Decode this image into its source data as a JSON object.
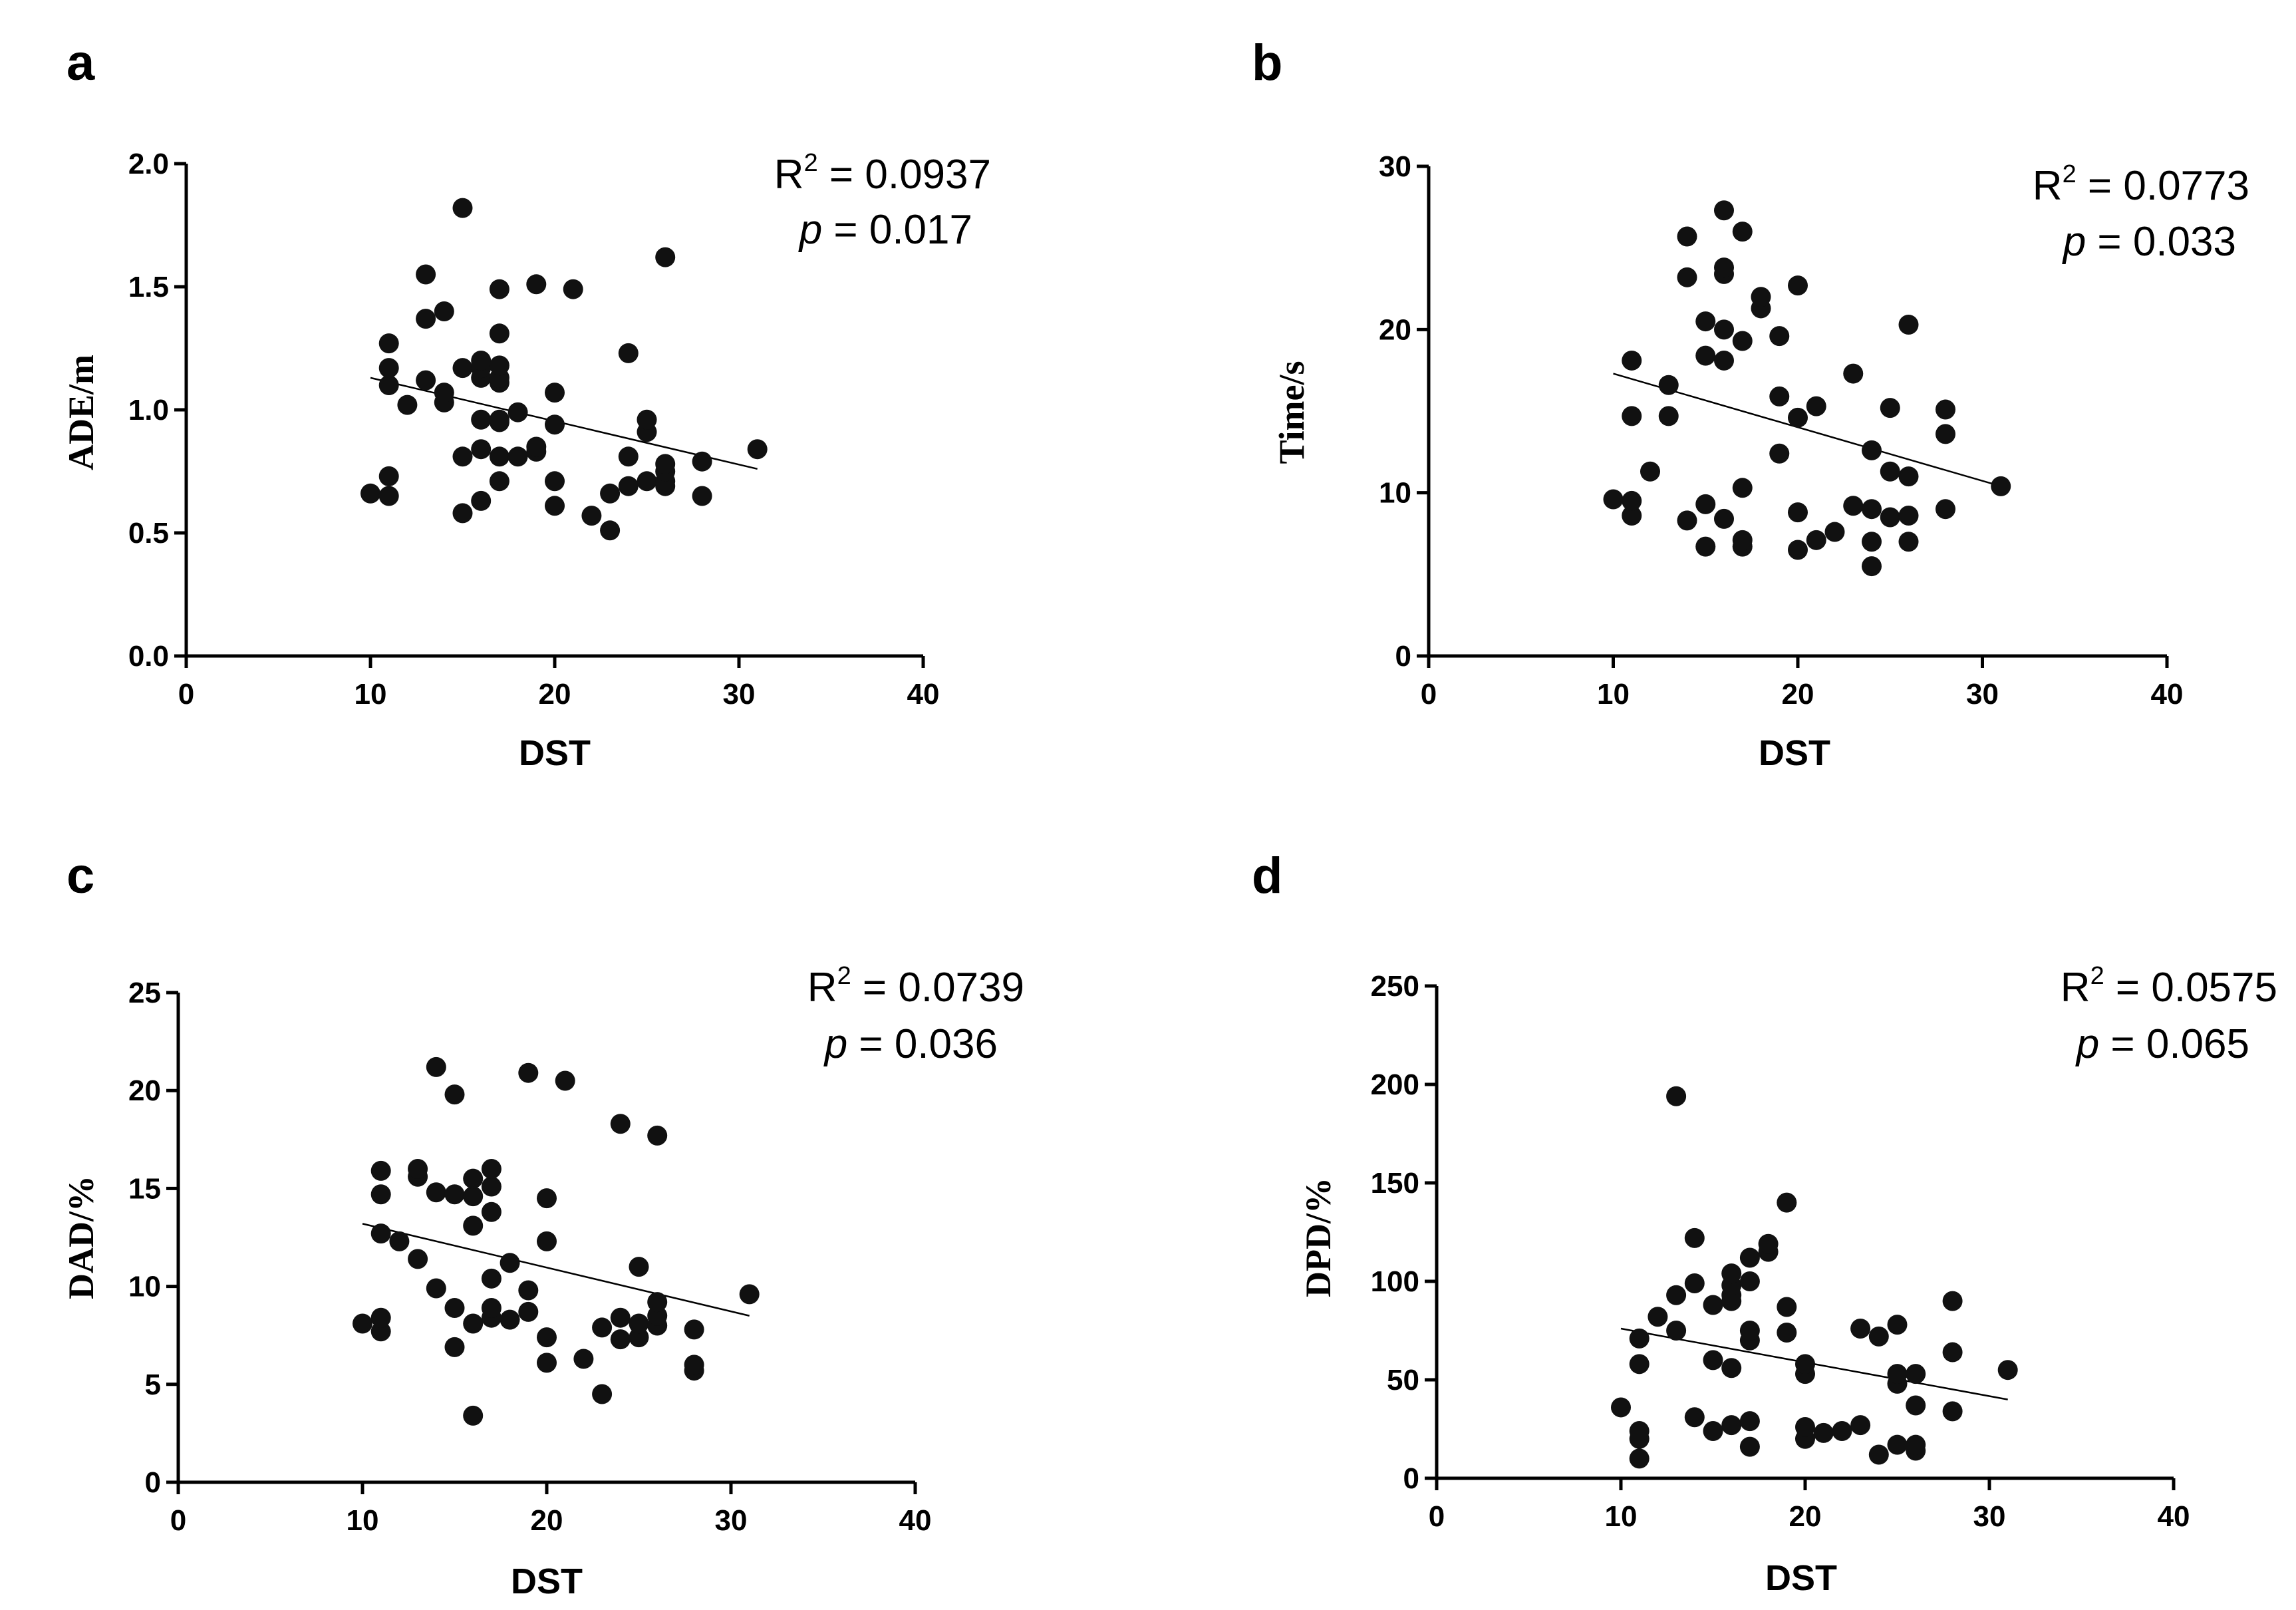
{
  "chart_data": [
    {
      "type": "scatter",
      "panel": "a",
      "title": "",
      "xlabel": "DST",
      "ylabel": "ADE/m",
      "xlim": [
        0,
        40
      ],
      "ylim": [
        0.0,
        2.0
      ],
      "xticks": [
        "0",
        "10",
        "20",
        "30",
        "40"
      ],
      "yticks": [
        "0.0",
        "0.5",
        "1.0",
        "1.5",
        "2.0"
      ],
      "xtick_values": [
        0,
        10,
        20,
        30,
        40
      ],
      "ytick_values": [
        0.0,
        0.5,
        1.0,
        1.5,
        2.0
      ],
      "stats": {
        "r2_label": "R",
        "r2_sup": "2",
        "r2_value": " = 0.0937",
        "p_label": "p",
        "p_value": " = 0.017"
      },
      "fit": {
        "x": [
          10,
          31
        ],
        "y": [
          1.13,
          0.76
        ]
      },
      "points": {
        "x": [
          10,
          11,
          11,
          11,
          11,
          11,
          12,
          13,
          13,
          13,
          14,
          14,
          14,
          15,
          15,
          15,
          15,
          16,
          16,
          16,
          16,
          16,
          16,
          17,
          17,
          17,
          17,
          17,
          17,
          17,
          17,
          17,
          18,
          18,
          19,
          19,
          19,
          20,
          20,
          20,
          20,
          21,
          22,
          23,
          23,
          24,
          24,
          24,
          25,
          25,
          25,
          26,
          26,
          26,
          26,
          26,
          28,
          28,
          31
        ],
        "y": [
          0.66,
          0.65,
          0.73,
          1.1,
          1.17,
          1.27,
          1.02,
          1.12,
          1.37,
          1.55,
          1.03,
          1.07,
          1.4,
          0.58,
          0.81,
          1.17,
          1.82,
          0.63,
          0.84,
          0.96,
          1.13,
          1.17,
          1.2,
          0.71,
          0.81,
          0.95,
          1.11,
          1.13,
          1.18,
          1.31,
          1.49,
          0.96,
          0.81,
          0.99,
          0.83,
          0.85,
          1.51,
          0.61,
          0.71,
          0.94,
          1.07,
          1.49,
          0.57,
          0.51,
          0.66,
          0.69,
          0.81,
          1.23,
          0.71,
          0.91,
          0.96,
          0.69,
          0.71,
          0.75,
          0.78,
          1.62,
          0.65,
          0.79,
          0.84
        ]
      }
    },
    {
      "type": "scatter",
      "panel": "b",
      "title": "",
      "xlabel": "DST",
      "ylabel": "Time/s",
      "xlim": [
        0,
        40
      ],
      "ylim": [
        0,
        30
      ],
      "xticks": [
        "0",
        "10",
        "20",
        "30",
        "40"
      ],
      "yticks": [
        "0",
        "10",
        "20",
        "30"
      ],
      "xtick_values": [
        0,
        10,
        20,
        30,
        40
      ],
      "ytick_values": [
        0,
        10,
        20,
        30
      ],
      "stats": {
        "r2_label": "R",
        "r2_sup": "2",
        "r2_value": " = 0.0773",
        "p_label": "p",
        "p_value": " = 0.033"
      },
      "fit": {
        "x": [
          10,
          31
        ],
        "y": [
          17.3,
          10.4
        ]
      },
      "points": {
        "x": [
          10,
          11,
          11,
          11,
          11,
          12,
          13,
          13,
          14,
          14,
          14,
          15,
          15,
          15,
          15,
          16,
          16,
          16,
          16,
          16,
          16,
          17,
          17,
          17,
          17,
          17,
          18,
          18,
          19,
          19,
          19,
          20,
          20,
          20,
          20,
          21,
          21,
          22,
          23,
          23,
          24,
          24,
          24,
          24,
          25,
          25,
          25,
          26,
          26,
          26,
          26,
          28,
          28,
          28,
          31
        ],
        "y": [
          9.6,
          8.6,
          9.5,
          14.7,
          18.1,
          11.3,
          14.7,
          16.6,
          8.3,
          23.2,
          25.7,
          6.7,
          9.3,
          18.4,
          20.5,
          8.4,
          18.1,
          20.0,
          23.4,
          23.8,
          27.3,
          6.7,
          7.1,
          10.3,
          19.3,
          26.0,
          21.3,
          22.0,
          12.4,
          15.9,
          19.6,
          6.5,
          8.8,
          14.6,
          22.7,
          7.1,
          15.3,
          7.6,
          9.2,
          17.3,
          5.5,
          7.0,
          12.6,
          9.0,
          8.5,
          11.3,
          15.2,
          7.0,
          8.6,
          11.0,
          20.3,
          9.0,
          13.6,
          15.1,
          10.4
        ]
      }
    },
    {
      "type": "scatter",
      "panel": "c",
      "title": "",
      "xlabel": "DST",
      "ylabel": "DAD/%",
      "xlim": [
        0,
        40
      ],
      "ylim": [
        0,
        25
      ],
      "xticks": [
        "0",
        "10",
        "20",
        "30",
        "40"
      ],
      "yticks": [
        "0",
        "5",
        "10",
        "15",
        "20",
        "25"
      ],
      "xtick_values": [
        0,
        10,
        20,
        30,
        40
      ],
      "ytick_values": [
        0,
        5,
        10,
        15,
        20,
        25
      ],
      "stats": {
        "r2_label": "R",
        "r2_sup": "2",
        "r2_value": " = 0.0739",
        "p_label": "p",
        "p_value": " = 0.036"
      },
      "fit": {
        "x": [
          10,
          31
        ],
        "y": [
          13.2,
          8.5
        ]
      },
      "points": {
        "x": [
          10,
          11,
          11,
          11,
          11,
          11,
          12,
          13,
          13,
          13,
          14,
          14,
          14,
          15,
          15,
          15,
          15,
          16,
          16,
          16,
          16,
          16,
          17,
          17,
          17,
          17,
          17,
          17,
          18,
          18,
          19,
          19,
          19,
          20,
          20,
          20,
          20,
          21,
          22,
          23,
          23,
          24,
          24,
          24,
          25,
          25,
          25,
          26,
          26,
          26,
          26,
          28,
          28,
          28,
          31
        ],
        "y": [
          8.1,
          7.7,
          8.4,
          12.7,
          14.7,
          15.9,
          12.3,
          11.4,
          15.6,
          16.0,
          9.9,
          14.8,
          21.2,
          6.9,
          8.9,
          14.7,
          19.8,
          3.4,
          8.1,
          13.1,
          14.6,
          15.5,
          8.4,
          8.9,
          10.4,
          13.8,
          15.1,
          16.0,
          8.3,
          11.2,
          8.7,
          9.8,
          20.9,
          6.1,
          7.4,
          12.3,
          14.5,
          20.5,
          6.3,
          4.5,
          7.9,
          7.3,
          8.4,
          18.3,
          7.4,
          8.1,
          11.0,
          8.0,
          8.5,
          9.2,
          17.7,
          5.7,
          6.0,
          7.8,
          9.6
        ]
      }
    },
    {
      "type": "scatter",
      "panel": "d",
      "title": "",
      "xlabel": "DST",
      "ylabel": "DPD/%",
      "xlim": [
        0,
        40
      ],
      "ylim": [
        0,
        250
      ],
      "xticks": [
        "0",
        "10",
        "20",
        "30",
        "40"
      ],
      "yticks": [
        "0",
        "50",
        "100",
        "150",
        "200",
        "250"
      ],
      "xtick_values": [
        0,
        10,
        20,
        30,
        40
      ],
      "ytick_values": [
        0,
        50,
        100,
        150,
        200,
        250
      ],
      "stats": {
        "r2_label": "R",
        "r2_sup": "2",
        "r2_value": " = 0.0575",
        "p_label": "p",
        "p_value": " = 0.065"
      },
      "fit": {
        "x": [
          10,
          31
        ],
        "y": [
          76,
          40
        ]
      },
      "points": {
        "x": [
          10,
          11,
          11,
          11,
          11,
          11,
          12,
          13,
          13,
          13,
          14,
          14,
          14,
          15,
          15,
          15,
          16,
          16,
          16,
          16,
          16,
          16,
          17,
          17,
          17,
          17,
          17,
          17,
          18,
          18,
          19,
          19,
          19,
          20,
          20,
          20,
          20,
          21,
          22,
          23,
          23,
          24,
          24,
          25,
          25,
          25,
          25,
          26,
          26,
          26,
          26,
          28,
          28,
          28,
          31
        ],
        "y": [
          36,
          10,
          20,
          24,
          58,
          71,
          82,
          75,
          93,
          194,
          31,
          99,
          122,
          24,
          60,
          88,
          27,
          56,
          90,
          93,
          98,
          104,
          16,
          29,
          70,
          75,
          100,
          112,
          115,
          119,
          74,
          87,
          140,
          20,
          26,
          53,
          58,
          23,
          24,
          27,
          76,
          12,
          72,
          17,
          48,
          53,
          78,
          14,
          17,
          37,
          53,
          34,
          64,
          90,
          55
        ]
      }
    }
  ]
}
